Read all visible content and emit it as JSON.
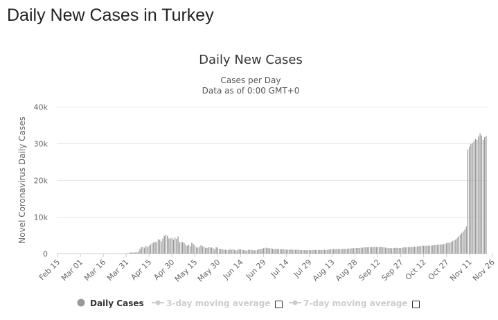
{
  "page": {
    "title": "Daily New Cases in Turkey"
  },
  "chart_data": {
    "type": "bar",
    "title": "Daily New Cases",
    "subtitle": "Cases per Day",
    "subtitle2": "Data as of 0:00 GMT+0",
    "ylabel": "Novel Coronavirus Daily Cases",
    "xlabel": "",
    "ylim": [
      0,
      40000
    ],
    "yticks": [
      {
        "value": 0,
        "label": "0"
      },
      {
        "value": 10000,
        "label": "10k"
      },
      {
        "value": 20000,
        "label": "20k"
      },
      {
        "value": 30000,
        "label": "30k"
      },
      {
        "value": 40000,
        "label": "40k"
      }
    ],
    "xticks": [
      "Feb 15",
      "Mar 01",
      "Mar 16",
      "Mar 31",
      "Apr 15",
      "Apr 30",
      "May 15",
      "May 30",
      "Jun 14",
      "Jun 29",
      "Jul 14",
      "Jul 29",
      "Aug 13",
      "Aug 28",
      "Sep 12",
      "Sep 27",
      "Oct 12",
      "Oct 27",
      "Nov 11",
      "Nov 26"
    ],
    "x_start": "Feb 15",
    "grid": true,
    "legend_position": "bottom",
    "bar_color": "#999999",
    "series": [
      {
        "name": "Daily Cases",
        "values": [
          0,
          0,
          0,
          0,
          0,
          0,
          0,
          0,
          0,
          0,
          0,
          0,
          0,
          0,
          0,
          0,
          0,
          0,
          0,
          0,
          0,
          0,
          0,
          0,
          0,
          0,
          0,
          0,
          0,
          0,
          0,
          0,
          0,
          0,
          0,
          0,
          0,
          0,
          0,
          0,
          1,
          0,
          4,
          12,
          29,
          47,
          98,
          168,
          311,
          277,
          289,
          293,
          343,
          561,
          1196,
          1815,
          1704,
          1610,
          2069,
          1704,
          2148,
          2456,
          2786,
          3013,
          3135,
          3148,
          3892,
          3783,
          3275,
          4056,
          4747,
          5138,
          4789,
          4093,
          4062,
          4281,
          3783,
          4353,
          3977,
          4611,
          3083,
          3116,
          3122,
          2861,
          2357,
          2131,
          2392,
          1983,
          2936,
          2615,
          2188,
          1670,
          1614,
          1832,
          2253,
          1977,
          1848,
          1546,
          1542,
          1704,
          1639,
          1635,
          1444,
          1114,
          1708,
          1610,
          1298,
          1176,
          1208,
          1022,
          1070,
          961,
          972,
          1141,
          1035,
          1182,
          987,
          839,
          983,
          1186,
          1141,
          1029,
          948,
          827,
          786,
          989,
          1043,
          1035,
          930,
          837,
          849,
          987,
          1153,
          1214,
          1304,
          1459,
          1562,
          1592,
          1429,
          1455,
          1386,
          1280,
          1217,
          1233,
          1239,
          1234,
          1164,
          1179,
          1187,
          1048,
          1045,
          1042,
          1059,
          1146,
          1020,
          1044,
          1005,
          1070,
          1031,
          927,
          948,
          962,
          935,
          926,
          918,
          942,
          917,
          951,
          983,
          998,
          991,
          985,
          973,
          961,
          1012,
          1022,
          993,
          1004,
          1091,
          1185,
          1203,
          1193,
          1214,
          1212,
          1220,
          1175,
          1172,
          1247,
          1250,
          1263,
          1302,
          1345,
          1385,
          1443,
          1453,
          1483,
          1502,
          1512,
          1530,
          1596,
          1614,
          1678,
          1691,
          1673,
          1694,
          1742,
          1743,
          1754,
          1767,
          1771,
          1761,
          1749,
          1752,
          1752,
          1672,
          1641,
          1532,
          1517,
          1486,
          1438,
          1484,
          1513,
          1594,
          1524,
          1493,
          1502,
          1567,
          1675,
          1662,
          1700,
          1713,
          1757,
          1796,
          1823,
          1844,
          1851,
          1950,
          1992,
          2040,
          2142,
          2136,
          2117,
          2153,
          2127,
          2174,
          2165,
          2203,
          2257,
          2330,
          2318,
          2430,
          2461,
          2508,
          2522,
          2673,
          2786,
          2969,
          2895,
          3126,
          3391,
          3574,
          3819,
          4255,
          4684,
          5167,
          5650,
          6014,
          6518,
          7381,
          28351,
          29132,
          29845,
          30103,
          30660,
          31219,
          30990,
          31896,
          32736,
          32137,
          31007,
          31670,
          32000
        ]
      }
    ],
    "legend": [
      {
        "label": "Daily Cases",
        "active": true
      },
      {
        "label": "3-day moving average",
        "active": false
      },
      {
        "label": "7-day moving average",
        "active": false
      }
    ]
  }
}
